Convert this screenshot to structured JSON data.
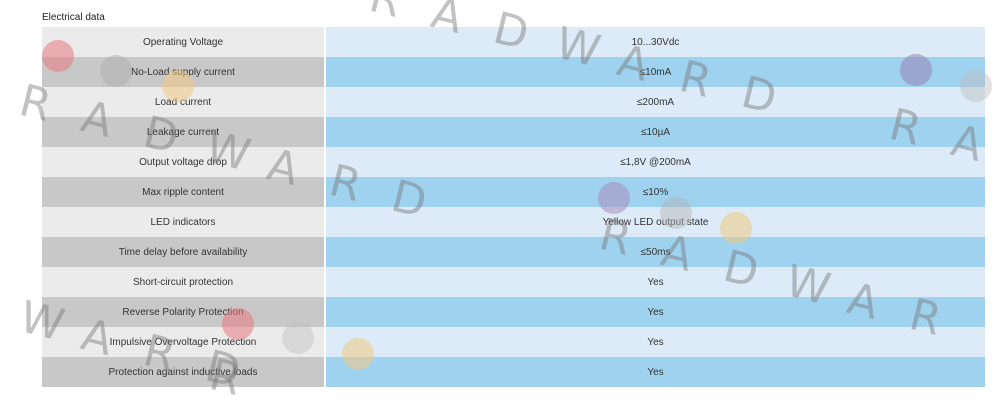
{
  "section": {
    "title": "Electrical data"
  },
  "rows": [
    {
      "label": "Operating Voltage",
      "value": "10...30Vdc"
    },
    {
      "label": "No-Load supply current",
      "value": "≤10mA"
    },
    {
      "label": "Load current",
      "value": "≤200mA"
    },
    {
      "label": "Leakage current",
      "value": "≤10µA"
    },
    {
      "label": "Output voltage drop",
      "value": "≤1,8V @200mA"
    },
    {
      "label": "Max ripple content",
      "value": "≤10%"
    },
    {
      "label": "LED indicators",
      "value": "Yellow LED output state"
    },
    {
      "label": "Time delay before availability",
      "value": "≤50ms"
    },
    {
      "label": "Short-circuit protection",
      "value": "Yes"
    },
    {
      "label": "Reverse Polarity Protection",
      "value": "Yes"
    },
    {
      "label": "Impulsive Overvoltage Protection",
      "value": "Yes"
    },
    {
      "label": "Protection against inductive loads",
      "value": "Yes"
    }
  ],
  "watermark": {
    "text": "RADWARD"
  },
  "colors": {
    "label_light": "#ebebeb",
    "label_dark": "#c8c8c8",
    "value_light": "#dcebf7",
    "value_dark": "#9fd2ee",
    "watermark_red": "#e89aa0",
    "watermark_orange": "#f0d29a",
    "watermark_purple": "#a59ac0",
    "watermark_gray": "#c8c8c8"
  }
}
